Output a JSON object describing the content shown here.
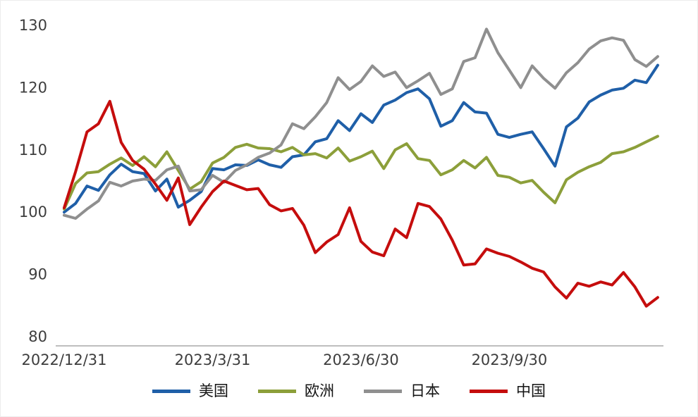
{
  "chart_data": {
    "type": "line",
    "title": "",
    "x_unit": "week",
    "n_points": 53,
    "x_range_description": "weekly points from 2022/12/31 to end of 2023",
    "xticks": [
      {
        "label": "2022/12/31",
        "week": 0
      },
      {
        "label": "2023/3/31",
        "week": 13
      },
      {
        "label": "2023/6/30",
        "week": 26
      },
      {
        "label": "2023/9/30",
        "week": 39
      }
    ],
    "yticks": [
      80,
      90,
      100,
      110,
      120,
      130
    ],
    "ylim": [
      80,
      130
    ],
    "grid": false,
    "legend_position": "bottom",
    "axis_line_color": "#a8a8a8",
    "tick_text_color": "#3d3d3d",
    "background_color": "#ffffff",
    "series": [
      {
        "id": "us",
        "name": "美国",
        "color": "#1f5fa8",
        "values": [
          100.0,
          101.4,
          104.2,
          103.5,
          106.0,
          107.7,
          106.5,
          106.2,
          103.4,
          105.3,
          100.8,
          101.9,
          103.3,
          107.0,
          106.8,
          107.6,
          107.5,
          108.4,
          107.6,
          107.2,
          108.9,
          109.2,
          111.3,
          111.8,
          114.7,
          113.1,
          115.8,
          114.4,
          117.2,
          118.0,
          119.2,
          119.8,
          118.2,
          113.8,
          114.7,
          117.6,
          116.1,
          115.9,
          112.5,
          112.0,
          112.5,
          112.9,
          110.2,
          107.4,
          113.7,
          115.1,
          117.7,
          118.8,
          119.6,
          119.9,
          121.2,
          120.8,
          123.6
        ]
      },
      {
        "id": "europe",
        "name": "欧洲",
        "color": "#8c9f3a",
        "values": [
          100.5,
          104.6,
          106.3,
          106.5,
          107.7,
          108.7,
          107.5,
          108.9,
          107.3,
          109.7,
          106.7,
          103.7,
          104.9,
          107.9,
          108.8,
          110.4,
          110.9,
          110.3,
          110.2,
          109.7,
          110.4,
          109.2,
          109.4,
          108.7,
          110.3,
          108.2,
          108.9,
          109.8,
          107.0,
          110.0,
          111.0,
          108.6,
          108.3,
          106.0,
          106.8,
          108.3,
          107.1,
          108.8,
          105.9,
          105.6,
          104.7,
          105.1,
          103.2,
          101.5,
          105.2,
          106.4,
          107.3,
          108.0,
          109.4,
          109.7,
          110.4,
          111.3,
          112.2
        ]
      },
      {
        "id": "japan",
        "name": "日本",
        "color": "#8f8f8f",
        "values": [
          99.5,
          99.0,
          100.5,
          101.8,
          104.8,
          104.2,
          105.0,
          105.3,
          105.1,
          106.8,
          107.4,
          103.4,
          103.6,
          105.9,
          104.8,
          106.7,
          107.6,
          108.8,
          109.5,
          110.8,
          114.2,
          113.4,
          115.3,
          117.6,
          121.6,
          119.7,
          121.0,
          123.5,
          121.8,
          122.5,
          120.0,
          121.1,
          122.3,
          118.9,
          119.8,
          124.2,
          124.8,
          129.4,
          125.6,
          122.8,
          120.0,
          123.5,
          121.5,
          119.9,
          122.4,
          124.0,
          126.2,
          127.5,
          128.0,
          127.6,
          124.5,
          123.4,
          125.0
        ]
      },
      {
        "id": "china",
        "name": "中国",
        "color": "#c50d0d",
        "values": [
          100.7,
          106.5,
          112.9,
          114.2,
          117.8,
          111.2,
          108.3,
          106.9,
          104.5,
          101.9,
          105.5,
          98.0,
          100.8,
          103.3,
          105.0,
          104.3,
          103.6,
          103.8,
          101.2,
          100.2,
          100.6,
          97.9,
          93.5,
          95.2,
          96.4,
          100.7,
          95.3,
          93.6,
          93.0,
          97.3,
          95.9,
          101.4,
          100.9,
          98.9,
          95.5,
          91.5,
          91.7,
          94.1,
          93.4,
          92.9,
          92.0,
          91.0,
          90.4,
          88.0,
          86.2,
          88.6,
          88.1,
          88.8,
          88.3,
          90.3,
          88.0,
          84.9,
          86.3
        ]
      }
    ]
  },
  "legend": {
    "items": [
      "美国",
      "欧洲",
      "日本",
      "中国"
    ]
  }
}
